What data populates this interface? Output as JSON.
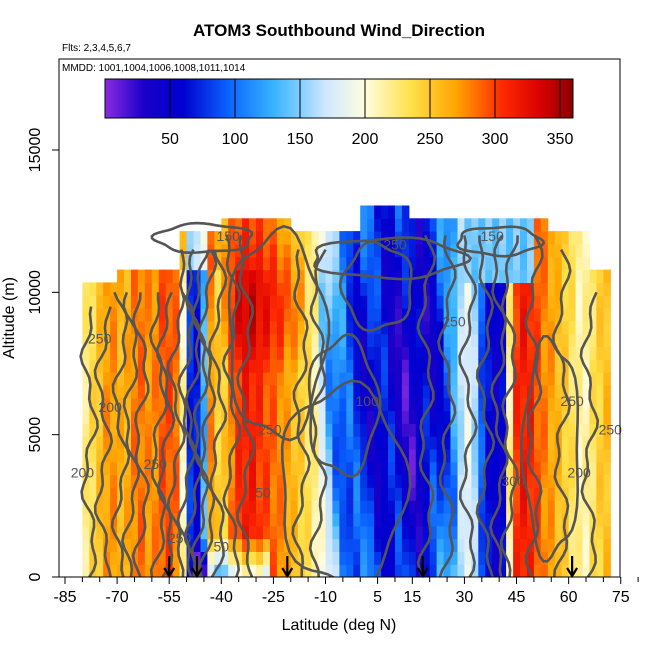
{
  "chart_data": {
    "type": "heatmap",
    "title": "ATOM3 Southbound Wind_Direction",
    "subtitle_flights": "Flts: 2,3,4,5,6,7",
    "subtitle_dates": "MMDD: 1001,1004,1006,1008,1011,1014",
    "xlabel": "Latitude (deg N)",
    "ylabel": "Altitude (m)",
    "xlim": [
      -85,
      85
    ],
    "ylim": [
      0,
      17500
    ],
    "x_ticks": [
      -85,
      -70,
      -55,
      -40,
      -25,
      -10,
      5,
      15,
      30,
      45,
      60,
      75
    ],
    "y_ticks": [
      0,
      5000,
      10000,
      15000
    ],
    "colorbar": {
      "range": [
        0,
        360
      ],
      "ticks": [
        50,
        100,
        150,
        200,
        250,
        300,
        350
      ],
      "stops": [
        {
          "v": 0,
          "c": "#8a2be2"
        },
        {
          "v": 30,
          "c": "#1a00c8"
        },
        {
          "v": 60,
          "c": "#0000d0"
        },
        {
          "v": 95,
          "c": "#0a64ff"
        },
        {
          "v": 130,
          "c": "#38b4ff"
        },
        {
          "v": 170,
          "c": "#cfe8ff"
        },
        {
          "v": 200,
          "c": "#fffde0"
        },
        {
          "v": 235,
          "c": "#ffe14a"
        },
        {
          "v": 270,
          "c": "#ffa500"
        },
        {
          "v": 305,
          "c": "#ff2a00"
        },
        {
          "v": 335,
          "c": "#d90000"
        },
        {
          "v": 360,
          "c": "#8b0000"
        }
      ]
    },
    "flight_markers_lat": [
      -55,
      -47,
      -21,
      18,
      61
    ],
    "contour_labels": [
      {
        "text": "250",
        "lat": 10,
        "alt": 11500
      },
      {
        "text": "150",
        "lat": -38,
        "alt": 11800
      },
      {
        "text": "150",
        "lat": 38,
        "alt": 11800
      },
      {
        "text": "250",
        "lat": -75,
        "alt": 8200
      },
      {
        "text": "200",
        "lat": -72,
        "alt": 5800
      },
      {
        "text": "250",
        "lat": 27,
        "alt": 8800
      },
      {
        "text": "250",
        "lat": -26,
        "alt": 5000
      },
      {
        "text": "100",
        "lat": 2,
        "alt": 6000
      },
      {
        "text": "250",
        "lat": -59,
        "alt": 3800
      },
      {
        "text": "200",
        "lat": -80,
        "alt": 3500
      },
      {
        "text": "300",
        "lat": 44,
        "alt": 3200
      },
      {
        "text": "200",
        "lat": 63,
        "alt": 3500
      },
      {
        "text": "250",
        "lat": 61,
        "alt": 6000
      },
      {
        "text": "250",
        "lat": 72,
        "alt": 5000
      },
      {
        "text": "50",
        "lat": -40,
        "alt": 900
      },
      {
        "text": "250",
        "lat": -52,
        "alt": 1200
      },
      {
        "text": "50",
        "lat": -28,
        "alt": 2800
      }
    ],
    "grid": false,
    "legend": "colorbar top inside plot"
  }
}
